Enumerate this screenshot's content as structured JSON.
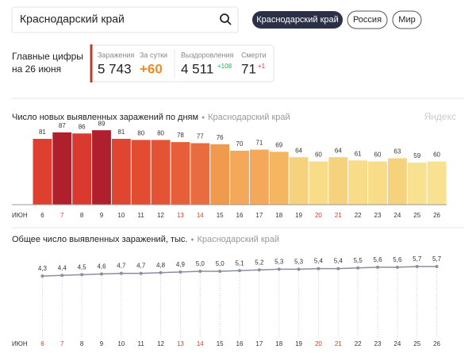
{
  "header": {
    "search": "Краснодарский край",
    "tabs": [
      "Краснодарский край",
      "Россия",
      "Мир"
    ],
    "summary_title": "Главные цифры",
    "summary_date": "на 26 июня",
    "stats": [
      {
        "label": "Заражения",
        "value": "5 743"
      },
      {
        "label": "За сутки",
        "value": "+60"
      },
      {
        "label": "Выздоровления",
        "value": "4 511",
        "delta": "+108"
      },
      {
        "label": "Смерти",
        "value": "71",
        "delta": "+1"
      }
    ],
    "watermark": "Яндекс"
  },
  "chart_data": [
    {
      "type": "bar",
      "title": "Число новых выявленных заражений по дням",
      "subtitle": "Краснодарский край",
      "x_label": "ИЮН",
      "categories": [
        "6",
        "7",
        "8",
        "9",
        "10",
        "11",
        "12",
        "13",
        "14",
        "15",
        "16",
        "17",
        "18",
        "19",
        "20",
        "21",
        "22",
        "23",
        "24",
        "25",
        "26"
      ],
      "values": [
        81,
        87,
        86,
        89,
        81,
        80,
        80,
        78,
        77,
        76,
        70,
        71,
        69,
        64,
        60,
        64,
        61,
        60,
        63,
        59,
        60
      ],
      "colors": [
        "#de3f2f",
        "#b01f2c",
        "#d9392e",
        "#b01f2c",
        "#e0462f",
        "#e24d31",
        "#e45434",
        "#e75f38",
        "#ea6b3d",
        "#f09a4e",
        "#f3a85a",
        "#f3a85a",
        "#f5b662",
        "#f7d27c",
        "#f8dc88",
        "#f7d27c",
        "#f8dc88",
        "#f8dc88",
        "#f7d27c",
        "#f9e192",
        "#f9e192"
      ],
      "label_colors": [
        "#333",
        "#e03a2e",
        "#333",
        "#333",
        "#333",
        "#333",
        "#333",
        "#e03a2e",
        "#e03a2e",
        "#333",
        "#333",
        "#333",
        "#333",
        "#333",
        "#e03a2e",
        "#e03a2e",
        "#333",
        "#333",
        "#333",
        "#333",
        "#333"
      ]
    },
    {
      "type": "line",
      "title": "Общее число выявленных заражений, тыс.",
      "subtitle": "Краснодарский край",
      "x_label": "ИЮН",
      "categories": [
        "6",
        "7",
        "8",
        "9",
        "10",
        "11",
        "12",
        "13",
        "14",
        "15",
        "16",
        "17",
        "18",
        "19",
        "20",
        "21",
        "22",
        "23",
        "24",
        "25",
        "26"
      ],
      "values": [
        4.3,
        4.4,
        4.5,
        4.6,
        4.7,
        4.7,
        4.8,
        4.9,
        5.0,
        5.0,
        5.1,
        5.2,
        5.3,
        5.3,
        5.4,
        5.4,
        5.5,
        5.6,
        5.6,
        5.7,
        5.7
      ],
      "value_labels": [
        "4,3",
        "4,4",
        "4,5",
        "4,6",
        "4,7",
        "4,7",
        "4,8",
        "4,9",
        "5,0",
        "5,0",
        "5,1",
        "5,2",
        "5,3",
        "5,3",
        "5,4",
        "5,4",
        "5,5",
        "5,6",
        "5,6",
        "5,7",
        "5,7"
      ],
      "color": "#8a8f9c",
      "grid": true,
      "label_colors": [
        "#e03a2e",
        "#e03a2e",
        "#333",
        "#333",
        "#333",
        "#333",
        "#333",
        "#e03a2e",
        "#e03a2e",
        "#333",
        "#333",
        "#333",
        "#333",
        "#333",
        "#e03a2e",
        "#e03a2e",
        "#333",
        "#333",
        "#333",
        "#333",
        "#333"
      ]
    }
  ]
}
